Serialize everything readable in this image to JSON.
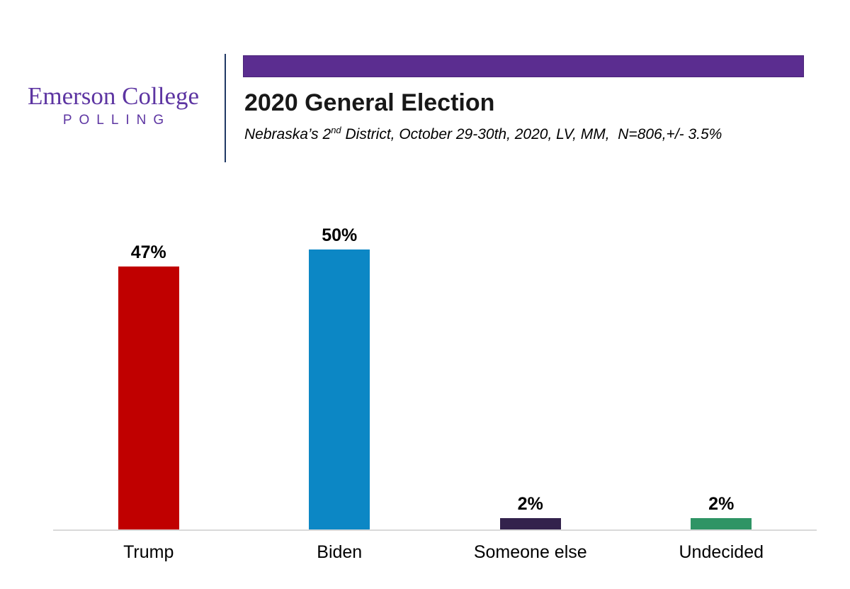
{
  "logo": {
    "line1": "Emerson College",
    "line2": "POLLING",
    "color": "#5d35a2"
  },
  "header": {
    "banner_color": "#5b2d90",
    "title": "2020 General Election",
    "subtitle_before_sup": "Nebraska’s 2",
    "subtitle_sup": "nd",
    "subtitle_after_sup": " District, October 29-30th, 2020, LV, MM,  N=806,+/- 3.5%"
  },
  "chart_data": {
    "type": "bar",
    "title": "2020 General Election",
    "subtitle": "Nebraska’s 2nd District, October 29-30th, 2020, LV, MM, N=806, +/- 3.5%",
    "categories": [
      "Trump",
      "Biden",
      "Someone else",
      "Undecided"
    ],
    "values": [
      47,
      50,
      2,
      2
    ],
    "value_labels": [
      "47%",
      "50%",
      "2%",
      "2%"
    ],
    "bar_colors": [
      "#c00000",
      "#0c87c5",
      "#33224c",
      "#2f9465"
    ],
    "xlabel": "",
    "ylabel": "",
    "ylim": [
      0,
      55
    ],
    "grid": false,
    "legend": false,
    "baseline_color": "#d9d9d9"
  }
}
